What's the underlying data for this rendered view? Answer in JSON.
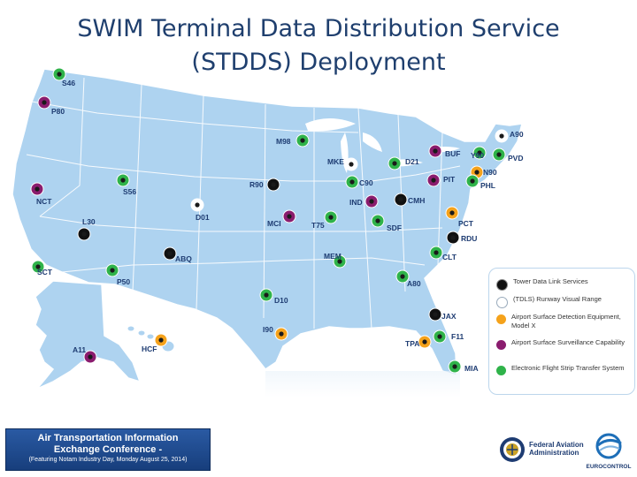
{
  "title": {
    "line1": "SWIM Terminal Data Distribution Service",
    "line2": "(STDDS) Deployment"
  },
  "colors": {
    "tower_data_link": "#111111",
    "tdls_rvr": "#ffffff",
    "asde_x": "#f5a21b",
    "asr": "#8a1c6e",
    "efsts": "#2fb34a"
  },
  "sites": [
    {
      "label": "S46",
      "type": "efsts"
    },
    {
      "label": "P80",
      "type": "asr"
    },
    {
      "label": "M98",
      "type": "efsts"
    },
    {
      "label": "A90",
      "type": "tdls_rvr"
    },
    {
      "label": "BUF",
      "type": "asr"
    },
    {
      "label": "Y90",
      "type": "efsts"
    },
    {
      "label": "PVD",
      "type": "efsts"
    },
    {
      "label": "MKE",
      "type": "tdls_rvr"
    },
    {
      "label": "D21",
      "type": "efsts"
    },
    {
      "label": "N90",
      "type": "asde_x"
    },
    {
      "label": "PHL",
      "type": "efsts"
    },
    {
      "label": "PIT",
      "type": "asr"
    },
    {
      "label": "C90",
      "type": "efsts"
    },
    {
      "label": "R90",
      "type": "tower_data_link"
    },
    {
      "label": "S56",
      "type": "efsts"
    },
    {
      "label": "NCT",
      "type": "asr"
    },
    {
      "label": "IND",
      "type": "asr"
    },
    {
      "label": "CMH",
      "type": "tower_data_link"
    },
    {
      "label": "D01",
      "type": "tdls_rvr"
    },
    {
      "label": "MCI",
      "type": "asr"
    },
    {
      "label": "T75",
      "type": "efsts"
    },
    {
      "label": "SDF",
      "type": "efsts"
    },
    {
      "label": "PCT",
      "type": "asde_x"
    },
    {
      "label": "L30",
      "type": "tower_data_link"
    },
    {
      "label": "RDU",
      "type": "tower_data_link"
    },
    {
      "label": "ABQ",
      "type": "tower_data_link"
    },
    {
      "label": "MEM",
      "type": "efsts"
    },
    {
      "label": "CLT",
      "type": "efsts"
    },
    {
      "label": "SCT",
      "type": "efsts"
    },
    {
      "label": "P50",
      "type": "efsts"
    },
    {
      "label": "A80",
      "type": "efsts"
    },
    {
      "label": "D10",
      "type": "efsts"
    },
    {
      "label": "JAX",
      "type": "tower_data_link"
    },
    {
      "label": "I90",
      "type": "asde_x"
    },
    {
      "label": "F11",
      "type": "efsts"
    },
    {
      "label": "TPA",
      "type": "asde_x"
    },
    {
      "label": "MIA",
      "type": "efsts"
    },
    {
      "label": "A11",
      "type": "asr"
    },
    {
      "label": "HCF",
      "type": "asde_x"
    }
  ],
  "legend": {
    "items": [
      {
        "type": "tower_data_link",
        "label": "Tower Data Link Services"
      },
      {
        "type": "tdls_rvr",
        "label": "(TDLS) Runway Visual Range"
      },
      {
        "type": "asde_x",
        "label": "Airport Surface Detection Equipment, Model X"
      },
      {
        "type": "asr",
        "label": "Airport Surface Surveillance Capability"
      },
      {
        "type": "efsts",
        "label": "Electronic Flight Strip Transfer System"
      }
    ]
  },
  "footer": {
    "conference_line1": "Air Transportation Information",
    "conference_line2": "Exchange Conference -",
    "conference_line3": "(Featuring Notam Industry Day, Monday August 25, 2014)",
    "faa_line1": "Federal Aviation",
    "faa_line2": "Administration",
    "eurocontrol": "EUROCONTROL"
  }
}
